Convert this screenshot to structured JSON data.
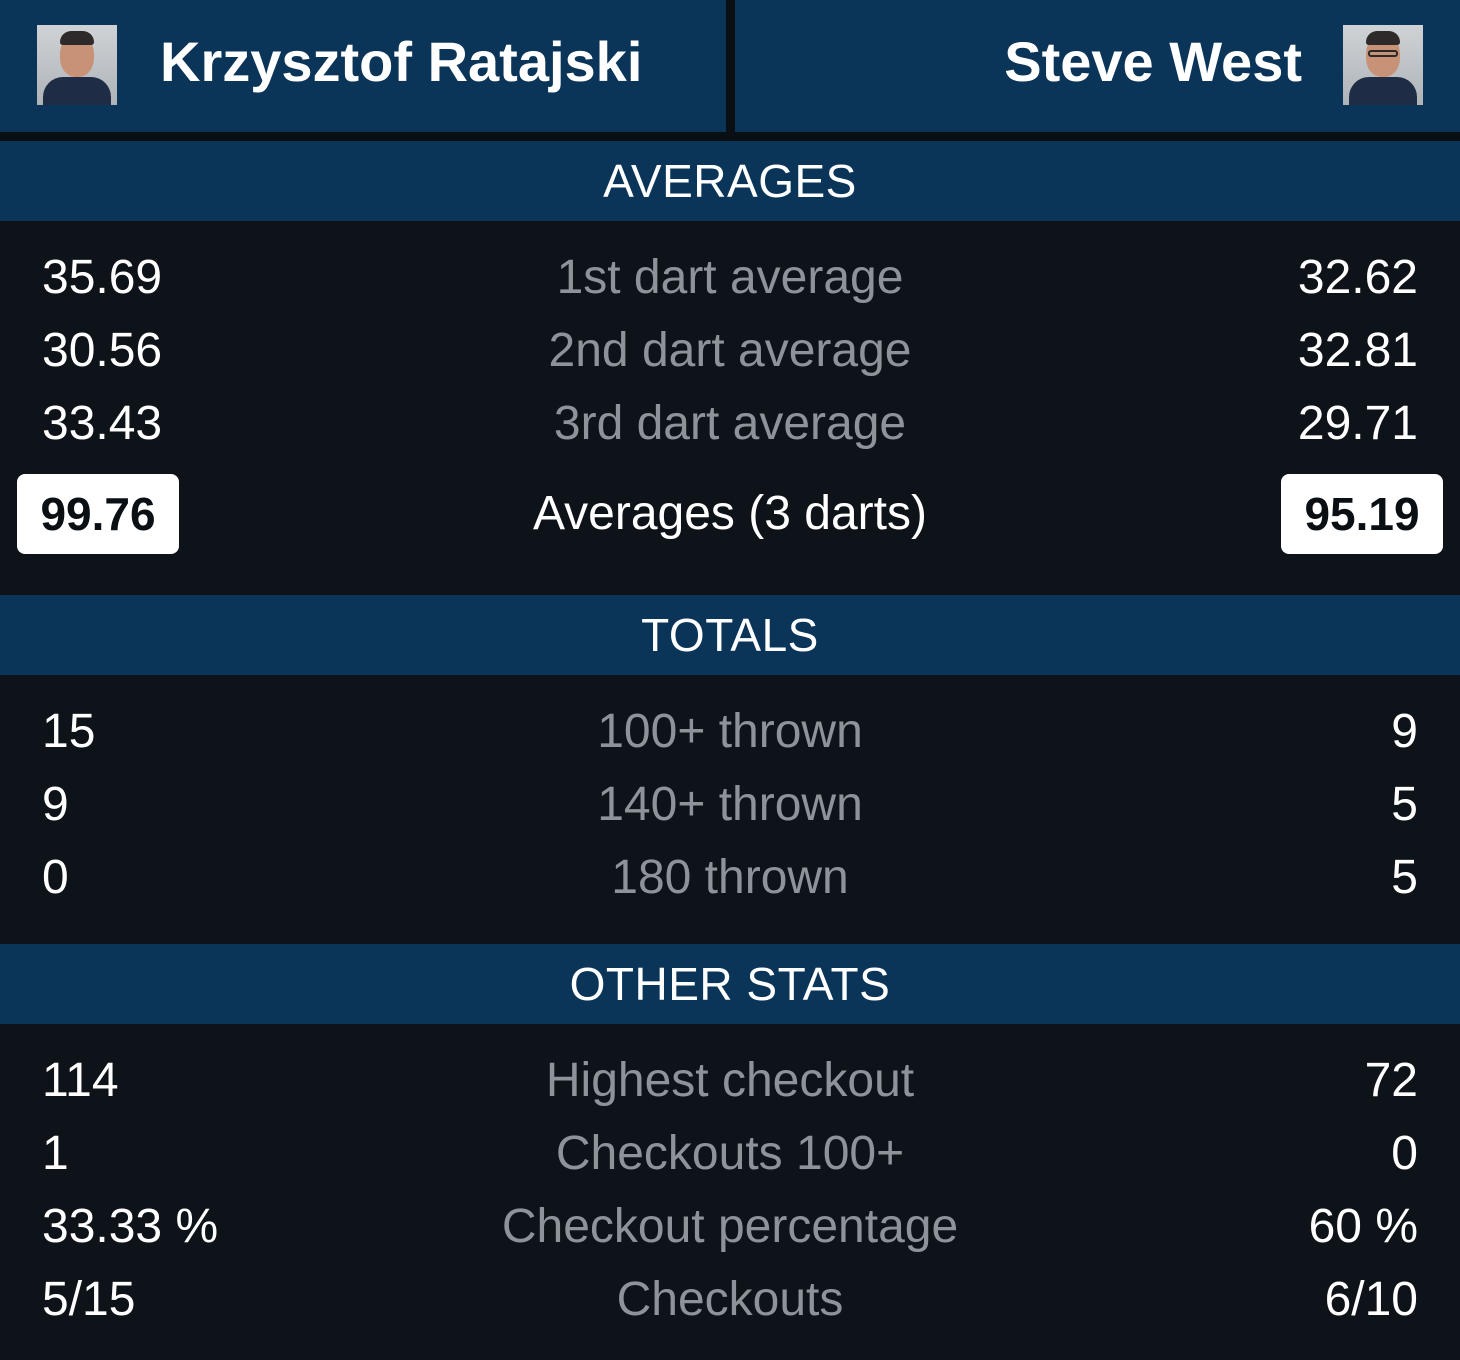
{
  "players": {
    "left": {
      "name": "Krzysztof Ratajski"
    },
    "right": {
      "name": "Steve West"
    }
  },
  "sections": {
    "averages": {
      "title": "AVERAGES",
      "rows": [
        {
          "label": "1st dart average",
          "left": "35.69",
          "right": "32.62"
        },
        {
          "label": "2nd dart average",
          "left": "30.56",
          "right": "32.81"
        },
        {
          "label": "3rd dart average",
          "left": "33.43",
          "right": "29.71"
        }
      ],
      "summary": {
        "label": "Averages (3 darts)",
        "left": "99.76",
        "right": "95.19"
      }
    },
    "totals": {
      "title": "TOTALS",
      "rows": [
        {
          "label": "100+ thrown",
          "left": "15",
          "right": "9"
        },
        {
          "label": "140+ thrown",
          "left": "9",
          "right": "5"
        },
        {
          "label": "180 thrown",
          "left": "0",
          "right": "5"
        }
      ]
    },
    "other": {
      "title": "OTHER STATS",
      "rows": [
        {
          "label": "Highest checkout",
          "left": "114",
          "right": "72"
        },
        {
          "label": "Checkouts 100+",
          "left": "1",
          "right": "0"
        },
        {
          "label": "Checkout percentage",
          "left": "33.33 %",
          "right": "60 %"
        },
        {
          "label": "Checkouts",
          "left": "5/15",
          "right": "6/10"
        }
      ]
    }
  },
  "colors": {
    "header_blue": "#0b3558",
    "background": "#0d1318",
    "label_gray": "#8e9399",
    "value_white": "#ffffff"
  }
}
